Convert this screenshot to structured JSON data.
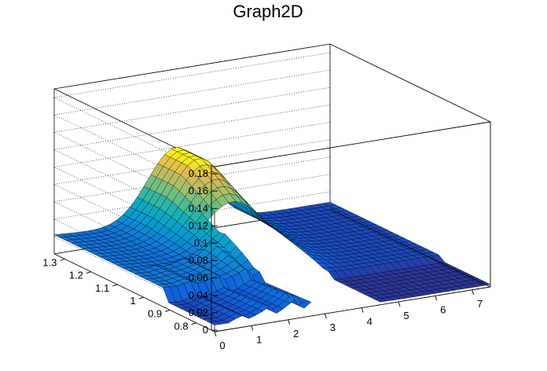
{
  "chart_data": {
    "type": "surface3d",
    "title": "Graph2D",
    "x_ticks": [
      "0",
      "1",
      "2",
      "3",
      "4",
      "5",
      "6",
      "7"
    ],
    "y_ticks": [
      "0.8",
      "0.9",
      "1",
      "1.1",
      "1.2",
      "1.3"
    ],
    "z_ticks": [
      "0",
      "0.02",
      "0.04",
      "0.06",
      "0.08",
      "0.1",
      "0.12",
      "0.14",
      "0.16",
      "0.18"
    ],
    "xlim": [
      0,
      7.5
    ],
    "ylim": [
      0.73,
      1.34
    ],
    "zlim": [
      0,
      0.19
    ],
    "grid": true,
    "colormap": "parula",
    "features": {
      "plateau_level_high_x": 0.022,
      "plateau_level_low_x": 0.008,
      "ridge_peak_x": 3.3,
      "ridge_peak_y": 1.25,
      "ridge_peak_z": 0.1,
      "gap_x_range": [
        2.7,
        4.4
      ],
      "gap_y_max": 1.12
    }
  }
}
